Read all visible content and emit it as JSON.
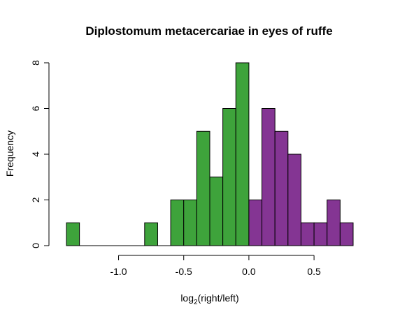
{
  "chart_data": {
    "type": "bar",
    "title": "Diplostomum metacercariae in eyes of ruffe",
    "xlabel": {
      "base": "log",
      "subscript": "2",
      "rest": "(right/left)"
    },
    "ylabel": "Frequency",
    "xlim": [
      -1.4,
      0.8
    ],
    "ylim": [
      0,
      8
    ],
    "bin_width": 0.1,
    "x_ticks": [
      -1.0,
      -0.5,
      0.0,
      0.5
    ],
    "x_tick_labels": [
      "-1.0",
      "-0.5",
      "0.0",
      "0.5"
    ],
    "y_ticks": [
      0,
      2,
      4,
      6,
      8
    ],
    "y_tick_labels": [
      "0",
      "2",
      "4",
      "6",
      "8"
    ],
    "colors": {
      "negative": "#3ea33b",
      "positive": "#843593"
    },
    "bins": [
      {
        "x0": -1.4,
        "x1": -1.3,
        "count": 1
      },
      {
        "x0": -1.3,
        "x1": -1.2,
        "count": 0
      },
      {
        "x0": -1.2,
        "x1": -1.1,
        "count": 0
      },
      {
        "x0": -1.1,
        "x1": -1.0,
        "count": 0
      },
      {
        "x0": -1.0,
        "x1": -0.9,
        "count": 0
      },
      {
        "x0": -0.9,
        "x1": -0.8,
        "count": 0
      },
      {
        "x0": -0.8,
        "x1": -0.7,
        "count": 1
      },
      {
        "x0": -0.7,
        "x1": -0.6,
        "count": 0
      },
      {
        "x0": -0.6,
        "x1": -0.5,
        "count": 2
      },
      {
        "x0": -0.5,
        "x1": -0.4,
        "count": 2
      },
      {
        "x0": -0.4,
        "x1": -0.3,
        "count": 5
      },
      {
        "x0": -0.3,
        "x1": -0.2,
        "count": 3
      },
      {
        "x0": -0.2,
        "x1": -0.1,
        "count": 6
      },
      {
        "x0": -0.1,
        "x1": 0.0,
        "count": 8
      },
      {
        "x0": 0.0,
        "x1": 0.1,
        "count": 2
      },
      {
        "x0": 0.1,
        "x1": 0.2,
        "count": 6
      },
      {
        "x0": 0.2,
        "x1": 0.3,
        "count": 5
      },
      {
        "x0": 0.3,
        "x1": 0.4,
        "count": 4
      },
      {
        "x0": 0.4,
        "x1": 0.5,
        "count": 1
      },
      {
        "x0": 0.5,
        "x1": 0.6,
        "count": 1
      },
      {
        "x0": 0.6,
        "x1": 0.7,
        "count": 2
      },
      {
        "x0": 0.7,
        "x1": 0.8,
        "count": 1
      }
    ]
  }
}
